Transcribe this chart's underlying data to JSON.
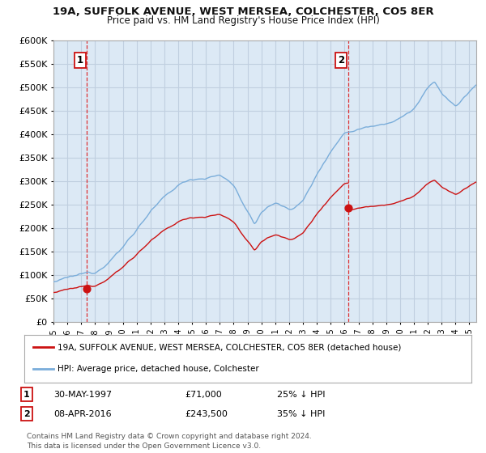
{
  "title1": "19A, SUFFOLK AVENUE, WEST MERSEA, COLCHESTER, CO5 8ER",
  "title2": "Price paid vs. HM Land Registry's House Price Index (HPI)",
  "ylim": [
    0,
    600000
  ],
  "yticks": [
    0,
    50000,
    100000,
    150000,
    200000,
    250000,
    300000,
    350000,
    400000,
    450000,
    500000,
    550000,
    600000
  ],
  "xlim_start": 1995.0,
  "xlim_end": 2025.5,
  "fig_bg": "#ffffff",
  "plot_bg": "#dce9f5",
  "grid_color": "#c0cfe0",
  "line_color_hpi": "#7aadda",
  "line_color_property": "#cc1111",
  "transaction1_year": 1997.41,
  "transaction1_price": 71000,
  "transaction2_year": 2016.27,
  "transaction2_price": 243500,
  "legend_property": "19A, SUFFOLK AVENUE, WEST MERSEA, COLCHESTER, CO5 8ER (detached house)",
  "legend_hpi": "HPI: Average price, detached house, Colchester",
  "note1_date": "30-MAY-1997",
  "note1_price": "£71,000",
  "note1_hpi": "25% ↓ HPI",
  "note2_date": "08-APR-2016",
  "note2_price": "£243,500",
  "note2_hpi": "35% ↓ HPI",
  "footer": "Contains HM Land Registry data © Crown copyright and database right 2024.\nThis data is licensed under the Open Government Licence v3.0."
}
